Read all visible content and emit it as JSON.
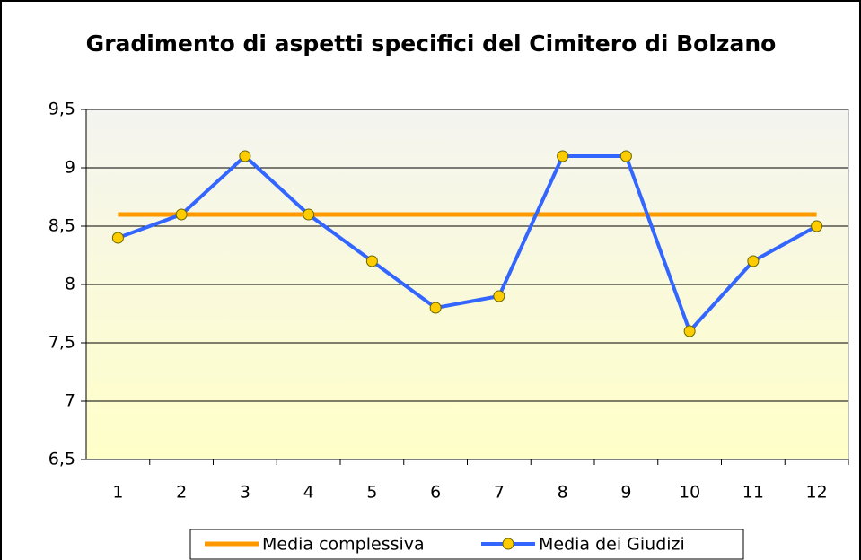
{
  "chart_data": {
    "type": "line",
    "title": "Gradimento di aspetti specifici del Cimitero di Bolzano",
    "categories": [
      "1",
      "2",
      "3",
      "4",
      "5",
      "6",
      "7",
      "8",
      "9",
      "10",
      "11",
      "12"
    ],
    "series": [
      {
        "name": "Media complessiva",
        "color": "#ff9900",
        "marker": false,
        "values": [
          8.6,
          8.6,
          8.6,
          8.6,
          8.6,
          8.6,
          8.6,
          8.6,
          8.6,
          8.6,
          8.6,
          8.6
        ]
      },
      {
        "name": "Media dei Giudizi",
        "color": "#3366ff",
        "marker": true,
        "values": [
          8.4,
          8.6,
          9.1,
          8.6,
          8.2,
          7.8,
          7.9,
          9.1,
          9.1,
          7.6,
          8.2,
          8.5
        ]
      }
    ],
    "ylim": [
      6.5,
      9.5
    ],
    "yticks": [
      {
        "value": 6.5,
        "label": "6,5"
      },
      7,
      {
        "value": 7.5,
        "label": "7,5"
      },
      8,
      {
        "value": 8.5,
        "label": "8,5"
      },
      9,
      {
        "value": 9.5,
        "label": "9,5"
      }
    ],
    "grid": true,
    "legend": "bottom"
  }
}
